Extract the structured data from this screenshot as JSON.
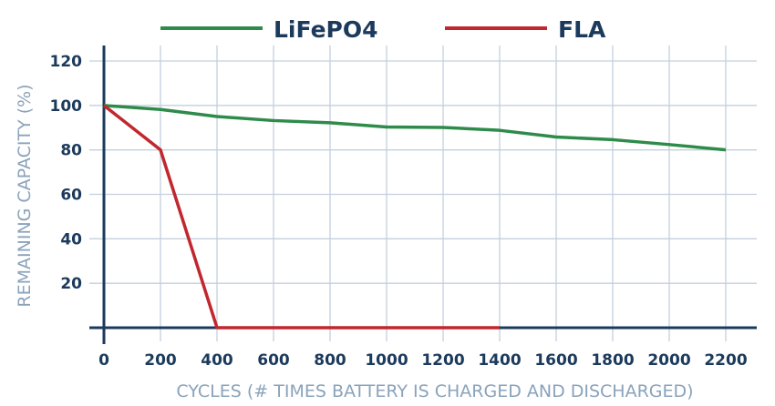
{
  "chart_data": {
    "type": "line",
    "title": "",
    "xlabel": "CYCLES (# TIMES BATTERY IS CHARGED AND DISCHARGED)",
    "ylabel": "REMAINING CAPACITY (%)",
    "xlim": [
      0,
      2200
    ],
    "ylim": [
      0,
      120
    ],
    "x_ticks": [
      "0",
      "200",
      "400",
      "600",
      "800",
      "1000",
      "1200",
      "1400",
      "1600",
      "1800",
      "2000",
      "2200"
    ],
    "y_ticks": [
      "20",
      "40",
      "60",
      "80",
      "100",
      "120"
    ],
    "grid": true,
    "legend_position": "top",
    "series": [
      {
        "name": "LiFePO4",
        "color": "#2e8b4a",
        "x": [
          0,
          200,
          400,
          600,
          800,
          1000,
          1200,
          1400,
          1600,
          1800,
          2000,
          2200
        ],
        "y": [
          100,
          98.2,
          95,
          93.2,
          92.2,
          90.3,
          90.1,
          88.8,
          85.8,
          84.6,
          82.4,
          80
        ]
      },
      {
        "name": "FLA",
        "color": "#c1272d",
        "x": [
          0,
          200,
          400,
          600,
          800,
          1000,
          1200,
          1400
        ],
        "y": [
          100,
          80,
          0,
          0,
          0,
          0,
          0,
          0
        ]
      }
    ]
  }
}
